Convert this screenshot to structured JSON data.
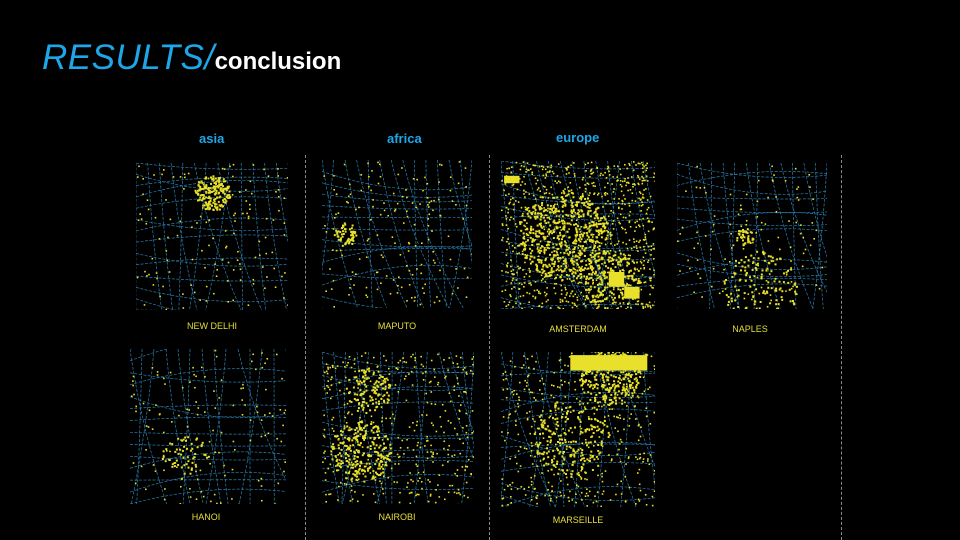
{
  "slide": {
    "title_main": "RESULTS/",
    "title_sub": "conclusion"
  },
  "regions": {
    "asia": "asia",
    "africa": "africa",
    "europe": "europe"
  },
  "cities": {
    "new_delhi": "NEW DELHI",
    "maputo": "MAPUTO",
    "amsterdam": "AMSTERDAM",
    "naples": "NAPLES",
    "hanoi": "HANOI",
    "nairobi": "NAIROBI",
    "marseille": "MARSEILLE"
  },
  "colors": {
    "accent_blue": "#1ea7e8",
    "grid_blue": "#2a7fae",
    "point_yellow": "#e8e02a"
  }
}
